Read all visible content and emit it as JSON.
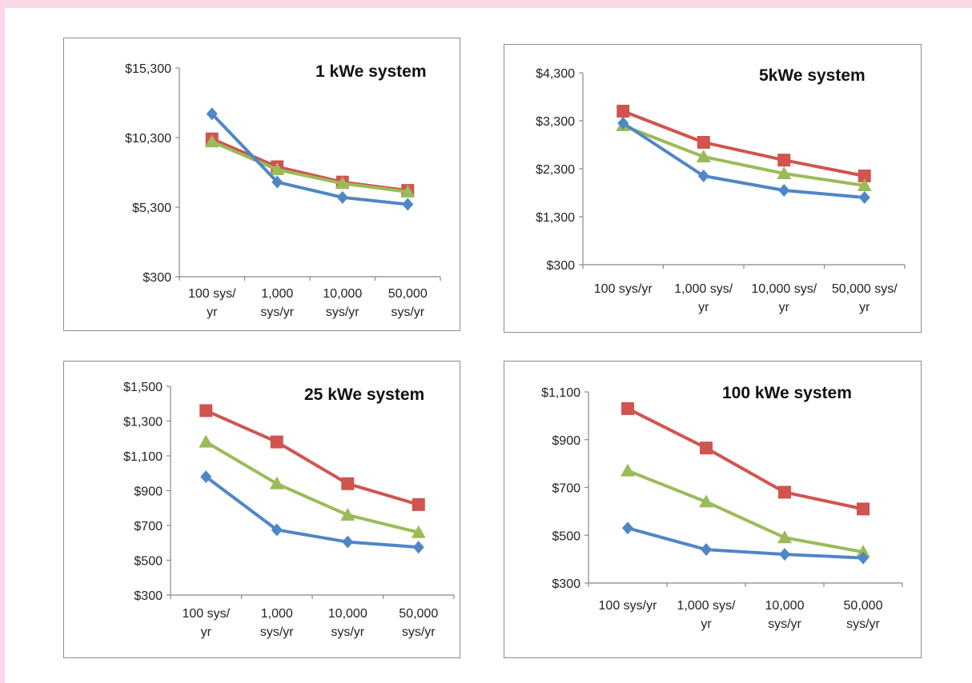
{
  "colors": {
    "blue": "#4f86c6",
    "red": "#d0544f",
    "green": "#9bbb59",
    "border": "#8c8c8c"
  },
  "chart_data": [
    {
      "type": "line",
      "title": "1 kWe system",
      "categories": [
        [
          "100 sys/",
          "yr"
        ],
        [
          "1,000",
          "sys/yr"
        ],
        [
          "10,000",
          "sys/yr"
        ],
        [
          "50,000",
          "sys/yr"
        ]
      ],
      "yticks": [
        "$300",
        "$5,300",
        "$10,300",
        "$15,300"
      ],
      "ylim": [
        300,
        15300
      ],
      "series": [
        {
          "color": "blue",
          "marker": "diamond",
          "values": [
            12000,
            7100,
            6000,
            5500
          ]
        },
        {
          "color": "red",
          "marker": "square",
          "values": [
            10200,
            8200,
            7100,
            6500
          ]
        },
        {
          "color": "green",
          "marker": "triangle",
          "values": [
            10000,
            8000,
            7000,
            6400
          ]
        }
      ]
    },
    {
      "type": "line",
      "title": "5kWe system",
      "categories": [
        [
          "100 sys/yr"
        ],
        [
          "1,000 sys/",
          "yr"
        ],
        [
          "10,000 sys/",
          "yr"
        ],
        [
          "50,000 sys/",
          "yr"
        ]
      ],
      "yticks": [
        "$300",
        "$1,300",
        "$2,300",
        "$3,300",
        "$4,300"
      ],
      "ylim": [
        300,
        4300
      ],
      "series": [
        {
          "color": "blue",
          "marker": "diamond",
          "values": [
            3250,
            2150,
            1850,
            1700
          ]
        },
        {
          "color": "red",
          "marker": "square",
          "values": [
            3500,
            2850,
            2480,
            2150
          ]
        },
        {
          "color": "green",
          "marker": "triangle",
          "values": [
            3200,
            2550,
            2200,
            1950
          ]
        }
      ]
    },
    {
      "type": "line",
      "title": "25 kWe system",
      "categories": [
        [
          "100 sys/",
          "yr"
        ],
        [
          "1,000",
          "sys/yr"
        ],
        [
          "10,000",
          "sys/yr"
        ],
        [
          "50,000",
          "sys/yr"
        ]
      ],
      "yticks": [
        "$300",
        "$500",
        "$700",
        "$900",
        "$1,100",
        "$1,300",
        "$1,500"
      ],
      "ylim": [
        300,
        1500
      ],
      "series": [
        {
          "color": "blue",
          "marker": "diamond",
          "values": [
            980,
            675,
            605,
            575
          ]
        },
        {
          "color": "red",
          "marker": "square",
          "values": [
            1360,
            1180,
            940,
            820
          ]
        },
        {
          "color": "green",
          "marker": "triangle",
          "values": [
            1180,
            940,
            760,
            660
          ]
        }
      ]
    },
    {
      "type": "line",
      "title": "100 kWe system",
      "categories": [
        [
          "100 sys/yr"
        ],
        [
          "1,000 sys/",
          "yr"
        ],
        [
          "10,000",
          "sys/yr"
        ],
        [
          "50,000",
          "sys/yr"
        ]
      ],
      "yticks": [
        "$300",
        "$500",
        "$700",
        "$900",
        "$1,100"
      ],
      "ylim": [
        300,
        1100
      ],
      "series": [
        {
          "color": "blue",
          "marker": "diamond",
          "values": [
            530,
            440,
            420,
            405
          ]
        },
        {
          "color": "red",
          "marker": "square",
          "values": [
            1030,
            865,
            680,
            610
          ]
        },
        {
          "color": "green",
          "marker": "triangle",
          "values": [
            770,
            640,
            490,
            430
          ]
        }
      ]
    }
  ]
}
